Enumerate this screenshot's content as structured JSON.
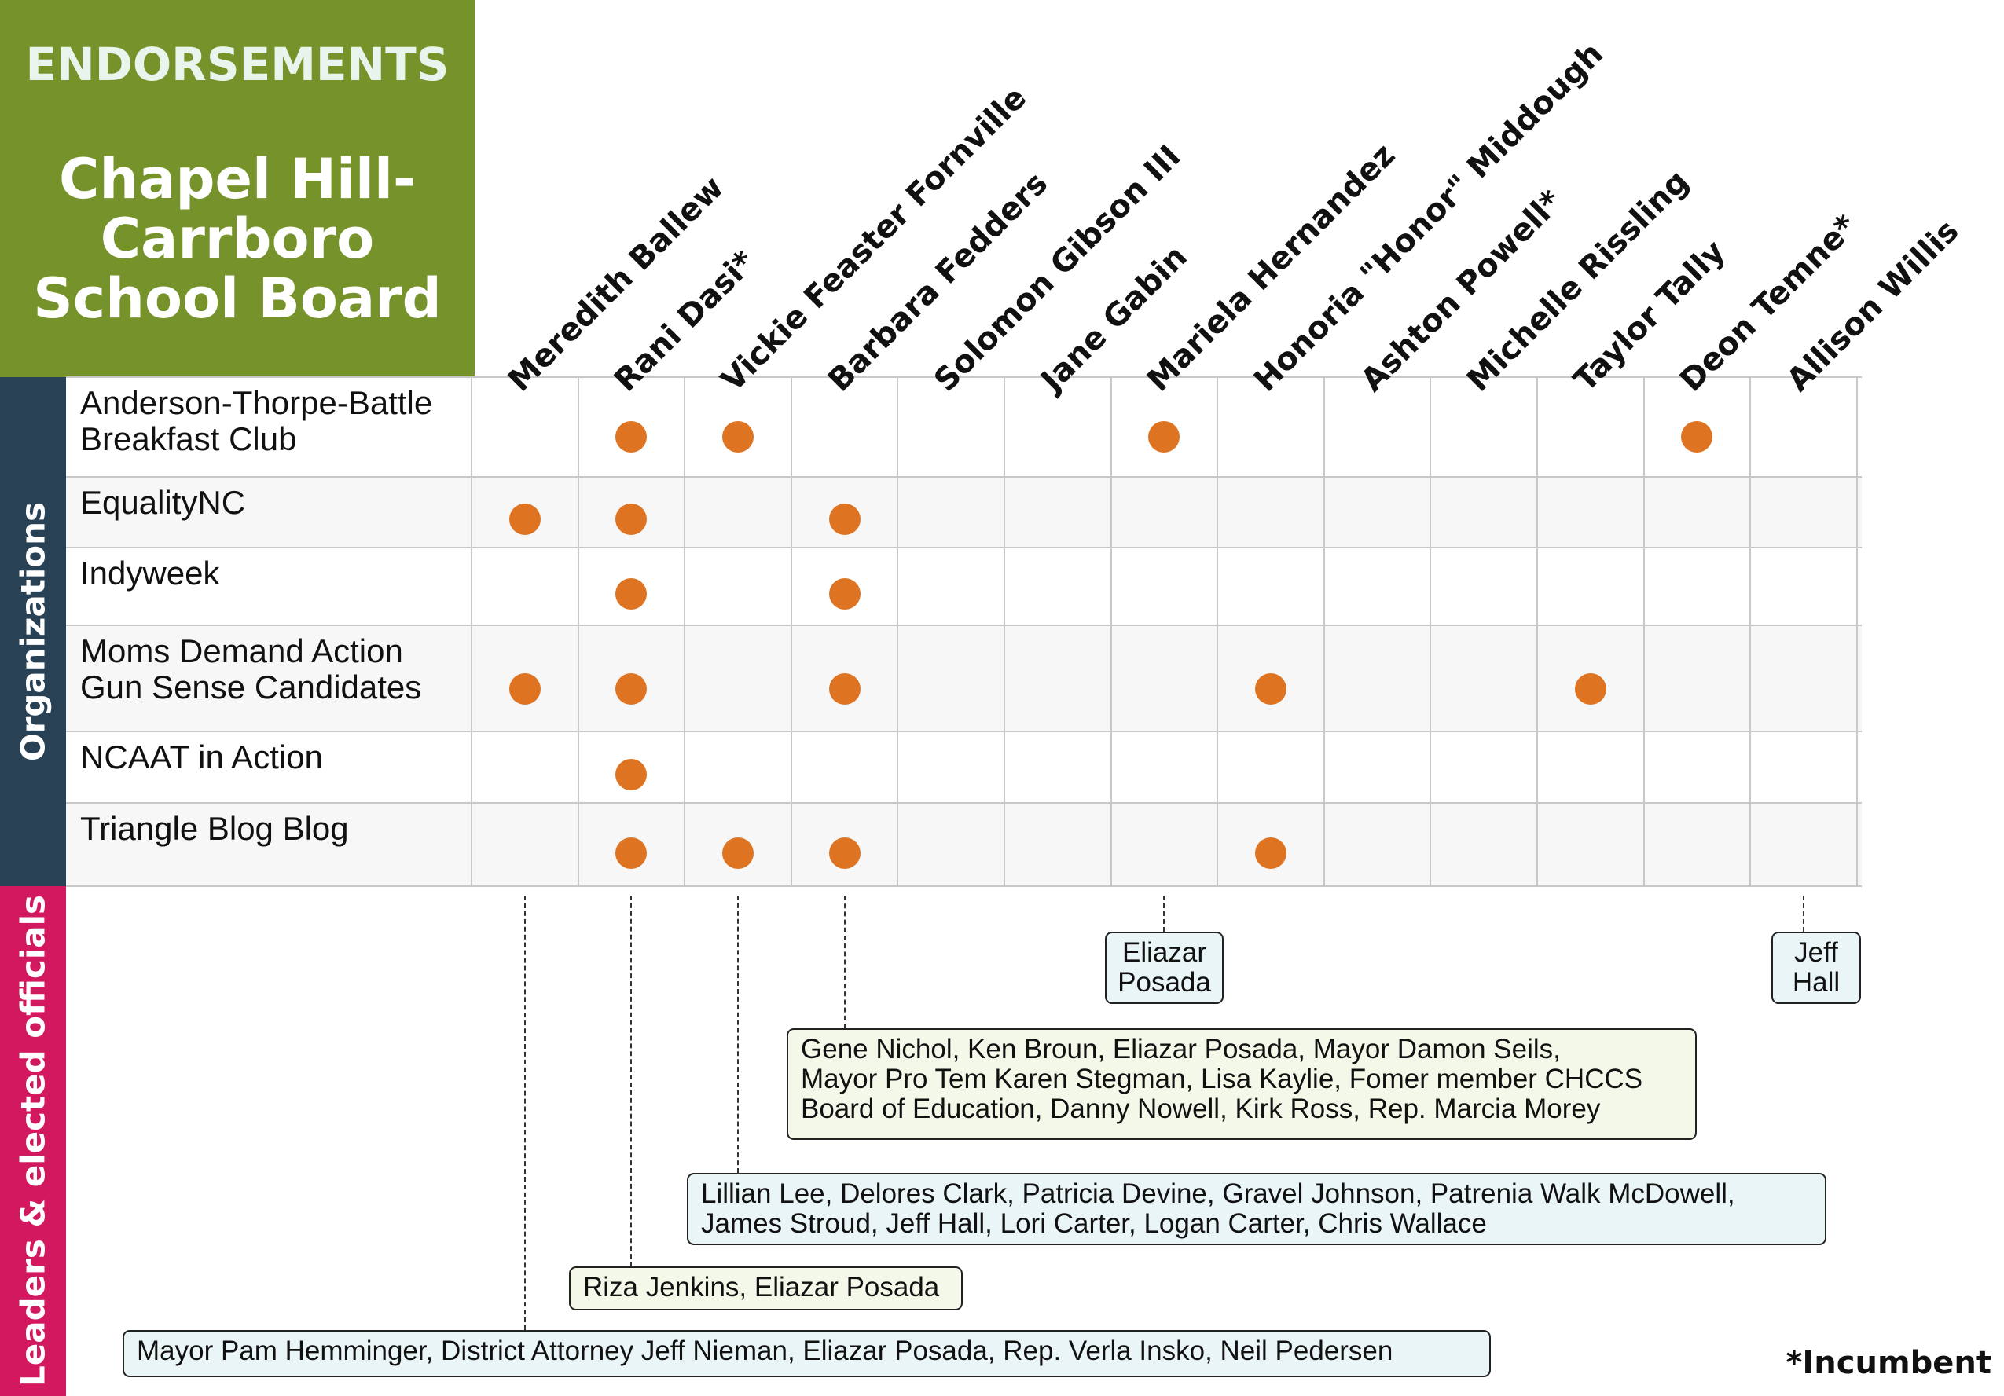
{
  "header": {
    "label": "ENDORSEMENTS",
    "title_lines": [
      "Chapel Hill-",
      "Carrboro",
      "School Board"
    ]
  },
  "sections": {
    "organizations": "Organizations",
    "leaders": "Leaders & elected officials"
  },
  "footnote": "*Incumbent",
  "colors": {
    "title_bg": "#76922a",
    "organizations_bg": "#284155",
    "leaders_bg": "#d2185f",
    "dot": "#de7421",
    "box_green": "#f4f8e8",
    "box_blue": "#eaf5f7"
  },
  "chart_data": {
    "type": "table",
    "candidates": [
      "Meredith Ballew",
      "Rani Dasi*",
      "Vickie Feaster Fornville",
      "Barbara Fedders",
      "Solomon Gibson III",
      "Jane Gabin",
      "Mariela Hernandez",
      "Honoria \"Honor\" Middough",
      "Ashton Powell*",
      "Michelle Rissling",
      "Taylor Tally",
      "Deon Temne*",
      "Allison Willis"
    ],
    "organizations": [
      {
        "lines": [
          "Anderson-Thorpe-Battle",
          "Breakfast Club"
        ],
        "endorses": [
          1,
          2,
          6,
          11
        ]
      },
      {
        "lines": [
          "EqualityNC"
        ],
        "endorses": [
          0,
          1,
          3
        ]
      },
      {
        "lines": [
          "Indyweek"
        ],
        "endorses": [
          1,
          3
        ]
      },
      {
        "lines": [
          "Moms Demand Action",
          "Gun Sense Candidates"
        ],
        "endorses": [
          0,
          1,
          3,
          7,
          10
        ]
      },
      {
        "lines": [
          "NCAAT in Action"
        ],
        "endorses": [
          1
        ]
      },
      {
        "lines": [
          "Triangle Blog Blog"
        ],
        "endorses": [
          1,
          2,
          3,
          7
        ]
      }
    ],
    "leaders": [
      {
        "candidate": 0,
        "lines": [
          "Mayor Pam Hemminger, District Attorney Jeff Nieman, Eliazar Posada, Rep. Verla Insko, Neil Pedersen"
        ],
        "style": "blue"
      },
      {
        "candidate": 1,
        "lines": [
          "Riza Jenkins, Eliazar Posada"
        ],
        "style": "green"
      },
      {
        "candidate": 2,
        "lines": [
          "Lillian Lee, Delores Clark, Patricia Devine, Gravel Johnson, Patrenia Walk McDowell,",
          "James Stroud, Jeff Hall, Lori Carter, Logan Carter, Chris Wallace"
        ],
        "style": "blue"
      },
      {
        "candidate": 3,
        "lines": [
          "Gene Nichol, Ken Broun, Eliazar Posada, Mayor Damon Seils,",
          "Mayor Pro Tem Karen Stegman, Lisa Kaylie, Fomer member CHCCS",
          "Board of Education, Danny Nowell, Kirk Ross, Rep. Marcia Morey"
        ],
        "style": "green"
      },
      {
        "candidate": 6,
        "lines": [
          "Eliazar",
          "Posada"
        ],
        "style": "blue"
      },
      {
        "candidate": 12,
        "lines": [
          "Jeff",
          "Hall"
        ],
        "style": "blue"
      }
    ]
  }
}
